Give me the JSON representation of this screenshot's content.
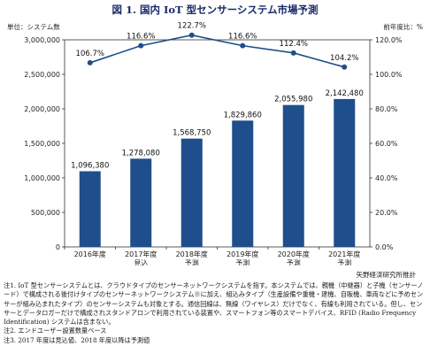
{
  "title": "図 1. 国内 IoT 型センサーシステム市場予測",
  "chart_data": {
    "type": "bar+line",
    "left_axis_label": "単位：システム数",
    "right_axis_label": "前年度比：%",
    "categories": [
      [
        "2016年度"
      ],
      [
        "2017年度",
        "見込"
      ],
      [
        "2018年度",
        "予測"
      ],
      [
        "2019年度",
        "予測"
      ],
      [
        "2020年度",
        "予測"
      ],
      [
        "2021年度",
        "予測"
      ]
    ],
    "bars": {
      "values": [
        1096380,
        1278080,
        1568750,
        1829860,
        2055980,
        2142480
      ],
      "labels": [
        "1,096,380",
        "1,278,080",
        "1,568,750",
        "1,829,860",
        "2,055,980",
        "2,142,480"
      ],
      "color": "#1f4e8c"
    },
    "line": {
      "values": [
        106.7,
        116.6,
        122.7,
        116.6,
        112.4,
        104.2
      ],
      "labels": [
        "106.7%",
        "116.6%",
        "122.7%",
        "116.6%",
        "112.4%",
        "104.2%"
      ],
      "color": "#1f4e8c"
    },
    "ylim_left": [
      0,
      3000000
    ],
    "yticks_left": [
      "0",
      "500,000",
      "1,000,000",
      "1,500,000",
      "2,000,000",
      "2,500,000",
      "3,000,000"
    ],
    "ylim_right": [
      0,
      120
    ],
    "yticks_right": [
      "0.0%",
      "20.0%",
      "40.0%",
      "60.0%",
      "80.0%",
      "100.0%",
      "120.0%"
    ]
  },
  "source": "矢野経済研究所推計",
  "notes": [
    "注1. IoT 型センサーシステムとは、クラウドタイプのセンサーネットワークシステムを指す。本システムでは、親機（中継器）と子機（センサーノード）で構成される後付けタイプのセンサーネットワークシステム※に加え、組込みタイプ（生産設備や重機・建機、自販機、車両などに予めセンサーが組み込まれたタイプ）のセンサーシステムも対象とする。通信回線は、無線（ワイヤレス）だけでなく、有線も利用されている。但し、センサーとデータロガーだけで構成されスタンドアロンで利用されている装置や、スマートフォン等のスマートデバイス、RFID (Radio Frequency Identification) システムは含まない。",
    "注2. エンドユーザー設置数量ベース",
    "注3. 2017 年度は見込値、2018 年度以降は予測値"
  ]
}
